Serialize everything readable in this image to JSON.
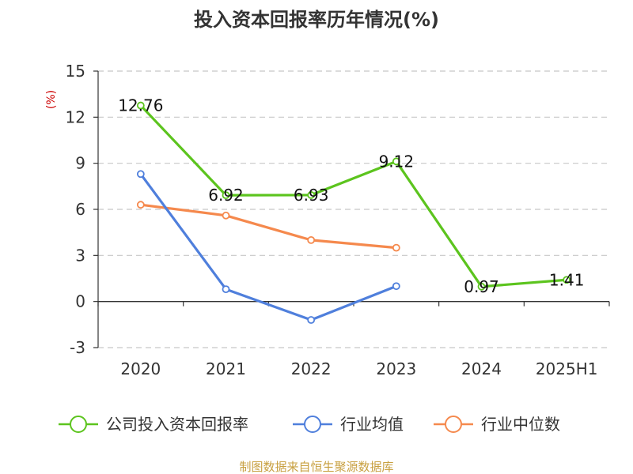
{
  "chart_data": {
    "type": "line",
    "title": "投入资本回报率历年情况(%)",
    "ylabel": "(%)",
    "xlabel": "",
    "categories": [
      "2020",
      "2021",
      "2022",
      "2023",
      "2024",
      "2025H1"
    ],
    "ylim": [
      -3,
      15
    ],
    "yticks": [
      -3,
      0,
      3,
      6,
      9,
      12,
      15
    ],
    "ytick_labels": [
      "-3",
      "0",
      "3",
      "6",
      "9",
      "12",
      "15"
    ],
    "grid": true,
    "legend_position": "bottom",
    "series": [
      {
        "name": "公司投入资本回报率",
        "color": "#5cc41e",
        "values": [
          12.76,
          6.92,
          6.93,
          9.12,
          0.97,
          1.41
        ],
        "labels": [
          "12.76",
          "6.92",
          "6.93",
          "9.12",
          "0.97",
          "1.41"
        ]
      },
      {
        "name": "行业均值",
        "color": "#4f7fdc",
        "values": [
          8.3,
          0.8,
          -1.2,
          1.0,
          null,
          null
        ]
      },
      {
        "name": "行业中位数",
        "color": "#f5894d",
        "values": [
          6.3,
          5.6,
          4.0,
          3.5,
          null,
          null
        ]
      }
    ]
  },
  "source": "制图数据来自恒生聚源数据库"
}
